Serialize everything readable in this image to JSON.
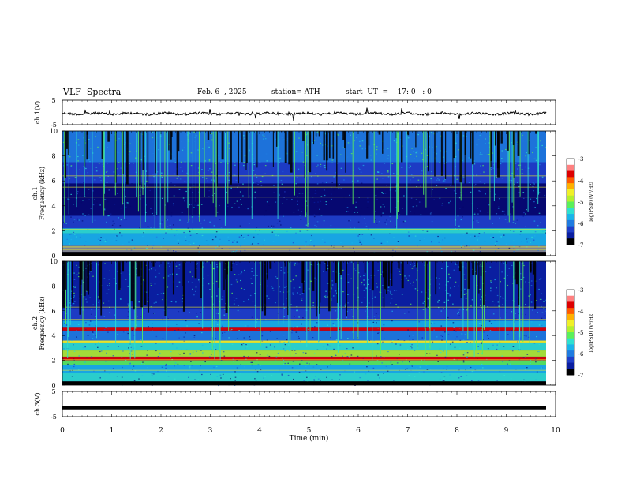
{
  "header": {
    "title": "VLF  Spectra",
    "date": "Feb. 6  , 2025",
    "station": "station= ATH",
    "start": "start  UT  =    17: 0   : 0"
  },
  "chart_data": [
    {
      "type": "line",
      "panel": "ch1",
      "ylabel": "ch.1(V)",
      "ylim": [
        -5,
        5
      ],
      "yticks": [
        5,
        -5
      ],
      "description_series": "waveform trace around -0.5 V with small fluctuations and occasional spikes"
    },
    {
      "type": "heatmap",
      "panel": "ch1-spectrogram",
      "ylabel_line1": "ch.1",
      "ylabel_line2": "Frequency  (kHz)",
      "ylim": [
        0,
        10
      ],
      "yticks": [
        0,
        2,
        4,
        6,
        8,
        10
      ],
      "colorbar": {
        "label": "log(PSD) (V²/Hz)",
        "range": [
          -7,
          -3
        ],
        "ticks": [
          -3,
          -4,
          -5,
          -6,
          -7
        ]
      }
    },
    {
      "type": "heatmap",
      "panel": "ch2-spectrogram",
      "ylabel_line1": "ch.2",
      "ylabel_line2": "Frequency  (kHz)",
      "ylim": [
        0,
        10
      ],
      "yticks": [
        0,
        2,
        4,
        6,
        8,
        10
      ],
      "colorbar": {
        "label": "log(PSD) (V²/Hz)",
        "range": [
          -7,
          -3
        ],
        "ticks": [
          -3,
          -4,
          -5,
          -6,
          -7
        ]
      }
    },
    {
      "type": "line",
      "panel": "ch3",
      "ylabel": "ch.3(V)",
      "ylim": [
        -5,
        5
      ],
      "yticks": [
        5,
        -5
      ],
      "series": [
        {
          "values_constant": -1.5
        }
      ]
    }
  ],
  "xaxis": {
    "label": "Time  (min)",
    "ticks": [
      0,
      1,
      2,
      3,
      4,
      5,
      6,
      7,
      8,
      9,
      10
    ],
    "range": [
      0,
      10
    ]
  }
}
